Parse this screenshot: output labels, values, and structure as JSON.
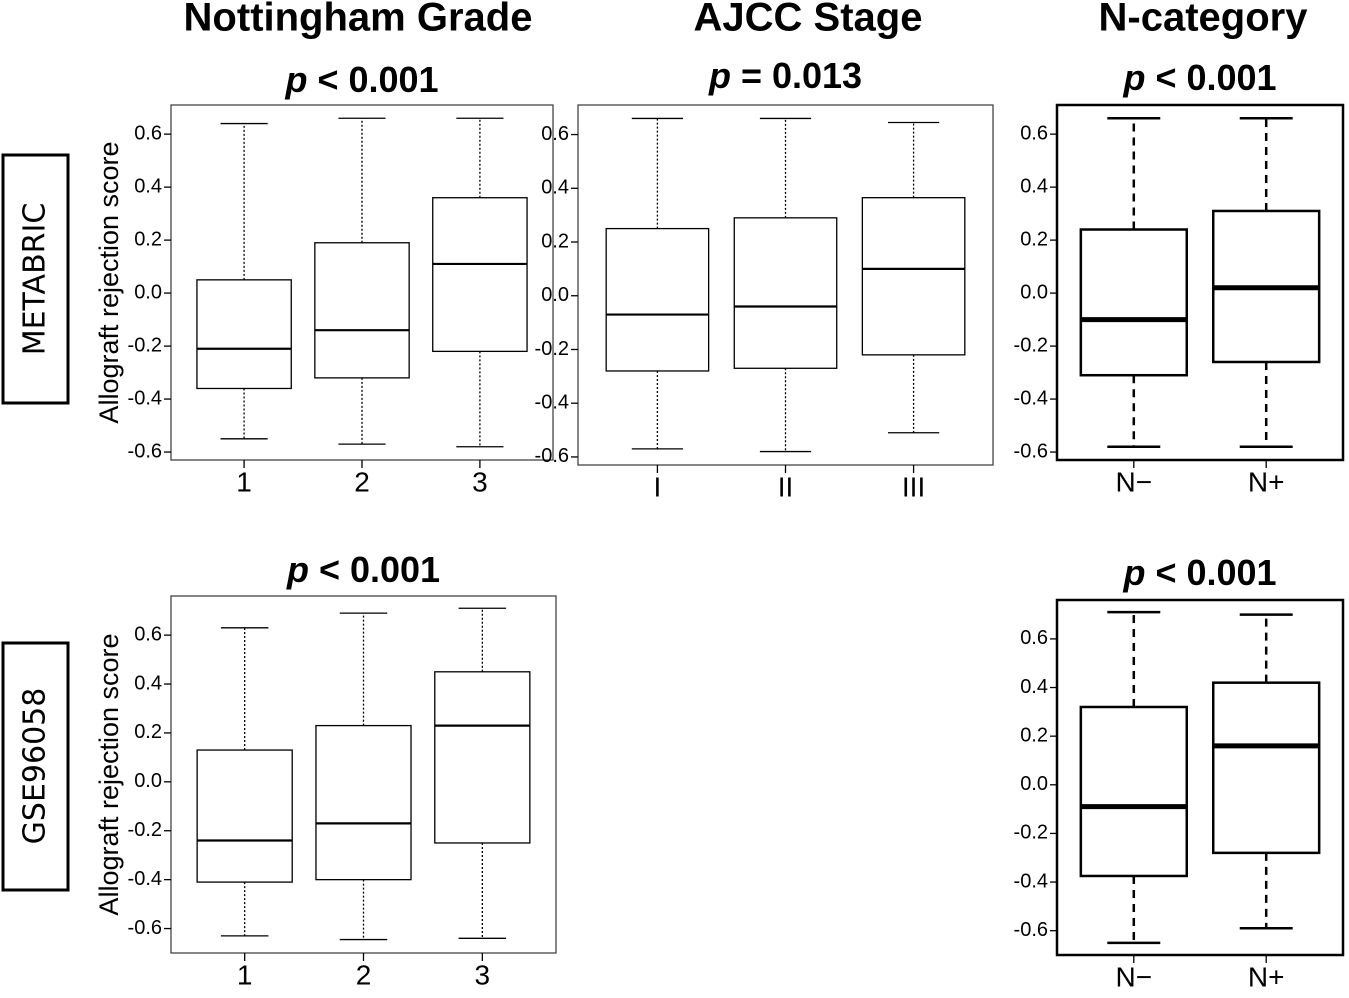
{
  "column_titles": [
    "Nottingham Grade",
    "AJCC Stage",
    "N-category"
  ],
  "row_labels": [
    "METABRIC",
    "GSE96058"
  ],
  "chart_data": [
    {
      "type": "box",
      "title": "p < 0.001",
      "ylabel": "Allograft rejection score",
      "categories": [
        "1",
        "2",
        "3"
      ],
      "min": [
        -0.55,
        -0.57,
        -0.58
      ],
      "q1": [
        -0.36,
        -0.32,
        -0.22
      ],
      "median": [
        -0.21,
        -0.14,
        0.11
      ],
      "q3": [
        0.05,
        0.19,
        0.36
      ],
      "max": [
        0.64,
        0.66,
        0.66
      ],
      "ylim": [
        -0.63,
        0.71
      ],
      "yticks": [
        -0.6,
        -0.4,
        -0.2,
        {
          "value": 0,
          "label": "0.0"
        },
        0.2,
        0.4,
        0.6
      ]
    },
    {
      "type": "box",
      "title": "p = 0.013",
      "categories": [
        "I",
        "II",
        "III"
      ],
      "min": [
        -0.57,
        -0.58,
        -0.51
      ],
      "q1": [
        -0.28,
        -0.27,
        -0.22
      ],
      "median": [
        -0.07,
        -0.04,
        0.1
      ],
      "q3": [
        0.25,
        0.29,
        0.365
      ],
      "max": [
        0.66,
        0.66,
        0.645
      ],
      "ylim": [
        -0.63,
        0.71
      ],
      "yticks": [
        -0.6,
        -0.4,
        -0.2,
        {
          "value": 0,
          "label": "0.0"
        },
        0.2,
        0.4,
        0.6
      ]
    },
    {
      "type": "box",
      "title": "p < 0.001",
      "categories": [
        "N−",
        "N+"
      ],
      "min": [
        -0.58,
        -0.58
      ],
      "q1": [
        -0.31,
        -0.26
      ],
      "median": [
        -0.1,
        0.02
      ],
      "q3": [
        0.24,
        0.31
      ],
      "max": [
        0.66,
        0.66
      ],
      "ylim": [
        -0.63,
        0.71
      ],
      "yticks": [
        -0.6,
        -0.4,
        -0.2,
        {
          "value": 0,
          "label": "0.0"
        },
        0.2,
        0.4,
        0.6
      ]
    },
    {
      "type": "box",
      "title": "p < 0.001",
      "ylabel": "Allograft rejection score",
      "categories": [
        "1",
        "2",
        "3"
      ],
      "min": [
        -0.63,
        -0.645,
        -0.64
      ],
      "q1": [
        -0.41,
        -0.4,
        -0.25
      ],
      "median": [
        -0.24,
        -0.17,
        0.23
      ],
      "q3": [
        0.13,
        0.23,
        0.45
      ],
      "max": [
        0.63,
        0.69,
        0.71
      ],
      "ylim": [
        -0.7,
        0.76
      ],
      "yticks": [
        -0.6,
        -0.4,
        -0.2,
        {
          "value": 0,
          "label": "0.0"
        },
        0.2,
        0.4,
        0.6
      ]
    },
    {
      "type": "box",
      "title": "p < 0.001",
      "categories": [
        "N−",
        "N+"
      ],
      "min": [
        -0.65,
        -0.59
      ],
      "q1": [
        -0.375,
        -0.28
      ],
      "median": [
        -0.09,
        0.16
      ],
      "q3": [
        0.32,
        0.42
      ],
      "max": [
        0.71,
        0.7
      ],
      "ylim": [
        -0.7,
        0.76
      ],
      "yticks": [
        -0.6,
        -0.4,
        -0.2,
        {
          "value": 0,
          "label": "0.0"
        },
        0.2,
        0.4,
        0.6
      ]
    }
  ]
}
